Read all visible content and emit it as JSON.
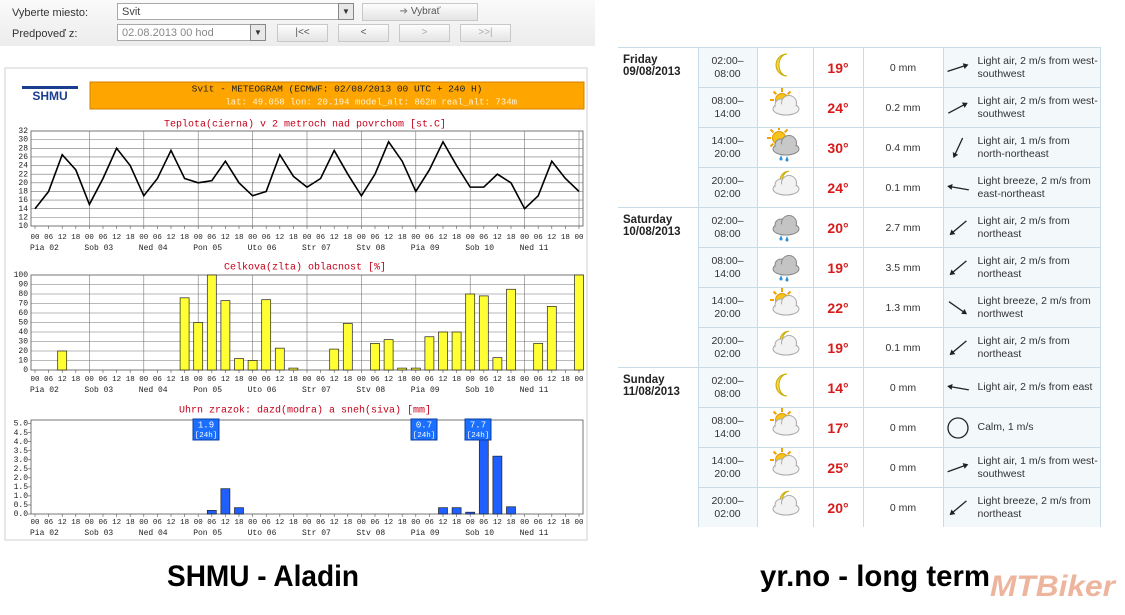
{
  "form": {
    "place_label": "Vyberte miesto:",
    "place": "Svit",
    "select_button": "Vybrať",
    "date_label": "Predpoveď z:",
    "date": "02.08.2013 00 hod",
    "nav": [
      "|<<",
      "<",
      ">",
      ">>|"
    ]
  },
  "meteogram": {
    "logo": "SHMU",
    "title": "Svit - METEOGRAM (ECMWF: 02/08/2013 00 UTC + 240 H)",
    "subtitle": "lat: 49.058  lon: 20.194  model_alt: 862m  real_alt: 734m",
    "hours": [
      "00",
      "06",
      "12",
      "18",
      "00",
      "06",
      "12",
      "18",
      "00",
      "06",
      "12",
      "18",
      "00",
      "06",
      "12",
      "18",
      "00",
      "06",
      "12",
      "18",
      "00",
      "06",
      "12",
      "18",
      "00",
      "06",
      "12",
      "18",
      "00",
      "06",
      "12",
      "18",
      "00",
      "06",
      "12",
      "18",
      "00",
      "06",
      "12",
      "18",
      "00"
    ],
    "days": [
      "Pia 02",
      "Sob 03",
      "Ned 04",
      "Pon 05",
      "Uto 06",
      "Str 07",
      "Stv 08",
      "Pia 09",
      "Sob 10",
      "Ned 11"
    ],
    "charts": [
      {
        "type": "line",
        "title": "Teplota(cierna) v 2 metroch nad povrchom [st.C]",
        "color": "#000000",
        "grid": true,
        "ylim": [
          10,
          32
        ],
        "yticks": [
          10,
          12,
          14,
          16,
          18,
          20,
          22,
          24,
          26,
          28,
          30,
          32
        ],
        "values": [
          14,
          18,
          26.5,
          23,
          15,
          21,
          28,
          24,
          17,
          21,
          27.5,
          21,
          20,
          20.5,
          25,
          20,
          17,
          18,
          26.5,
          21.5,
          19,
          21,
          27.5,
          22,
          17,
          22,
          29.5,
          25,
          18,
          23,
          29.5,
          24,
          19,
          19,
          22,
          20,
          14,
          17,
          25,
          21,
          18
        ]
      },
      {
        "type": "bar",
        "title": "Celkova(zlta) oblacnost [%]",
        "color": "#ffff33",
        "grid": true,
        "ylim": [
          0,
          100
        ],
        "yticks": [
          0,
          10,
          20,
          30,
          40,
          50,
          60,
          70,
          80,
          90,
          100
        ],
        "values": [
          0,
          0,
          20,
          0,
          0,
          0,
          0,
          0,
          0,
          0,
          0,
          76,
          50,
          100,
          73,
          12,
          10,
          74,
          23,
          2,
          0,
          0,
          22,
          49,
          0,
          28,
          32,
          2,
          2,
          35,
          40,
          40,
          80,
          78,
          13,
          85,
          0,
          28,
          67,
          0,
          100
        ]
      },
      {
        "type": "bar",
        "title": "Uhrn zrazok: dazd(modra) a sneh(siva) [mm]",
        "color": "#1f5fff",
        "grid": false,
        "ylim": [
          0,
          5.2
        ],
        "yticks": [
          {
            "value": 0,
            "label": "0.0"
          },
          {
            "value": 0.5,
            "label": "0.5"
          },
          {
            "value": 1,
            "label": "1.0"
          },
          {
            "value": 1.5,
            "label": "1.5"
          },
          {
            "value": 2,
            "label": "2.0"
          },
          {
            "value": 2.5,
            "label": "2.5"
          },
          {
            "value": 3,
            "label": "3.0"
          },
          {
            "value": 3.5,
            "label": "3.5"
          },
          {
            "value": 4,
            "label": "4.0"
          },
          {
            "value": 4.5,
            "label": "4.5"
          },
          {
            "value": 5,
            "label": "5.0"
          }
        ],
        "values": [
          0,
          0,
          0,
          0,
          0,
          0,
          0,
          0,
          0,
          0,
          0,
          0,
          0,
          0.2,
          1.4,
          0.35,
          0,
          0,
          0,
          0,
          0,
          0,
          0,
          0,
          0,
          0,
          0,
          0,
          0,
          0,
          0.35,
          0.35,
          0.1,
          4.3,
          3.2,
          0.4,
          0,
          0,
          0,
          0,
          0
        ],
        "annotations": [
          {
            "text": "1.9",
            "period": "[24h]"
          },
          {
            "text": "0.7",
            "period": "[24h]"
          },
          {
            "text": "7.7",
            "period": "[24h]"
          }
        ]
      }
    ]
  },
  "forecast": [
    {
      "day": "Friday",
      "date": "09/08/2013",
      "periods": [
        {
          "time": "02:00–08:00",
          "temperature": "19°",
          "precipitation": "0 mm",
          "wind": "Light air, 2 m/s from west-southwest"
        },
        {
          "time": "08:00–14:00",
          "temperature": "24°",
          "precipitation": "0.2 mm",
          "wind": "Light air, 2 m/s from west-southwest"
        },
        {
          "time": "14:00–20:00",
          "temperature": "30°",
          "precipitation": "0.4 mm",
          "wind": "Light air, 1 m/s from north-northeast"
        },
        {
          "time": "20:00–02:00",
          "temperature": "24°",
          "precipitation": "0.1 mm",
          "wind": "Light breeze, 2 m/s from east-northeast"
        }
      ]
    },
    {
      "day": "Saturday",
      "date": "10/08/2013",
      "periods": [
        {
          "time": "02:00–08:00",
          "temperature": "20°",
          "precipitation": "2.7 mm",
          "wind": "Light air, 2 m/s from northeast"
        },
        {
          "time": "08:00–14:00",
          "temperature": "19°",
          "precipitation": "3.5 mm",
          "wind": "Light air, 2 m/s from northeast"
        },
        {
          "time": "14:00–20:00",
          "temperature": "22°",
          "precipitation": "1.3 mm",
          "wind": "Light breeze, 2 m/s from northwest"
        },
        {
          "time": "20:00–02:00",
          "temperature": "19°",
          "precipitation": "0.1 mm",
          "wind": "Light air, 2 m/s from northeast"
        }
      ]
    },
    {
      "day": "Sunday",
      "date": "11/08/2013",
      "periods": [
        {
          "time": "02:00–08:00",
          "temperature": "14°",
          "precipitation": "0 mm",
          "wind": "Light air, 2 m/s from east"
        },
        {
          "time": "08:00–14:00",
          "temperature": "17°",
          "precipitation": "0 mm",
          "wind": "Calm, 1 m/s"
        },
        {
          "time": "14:00–20:00",
          "temperature": "25°",
          "precipitation": "0 mm",
          "wind": "Light air, 1 m/s from west-southwest"
        },
        {
          "time": "20:00–02:00",
          "temperature": "20°",
          "precipitation": "0 mm",
          "wind": "Light breeze, 2 m/s from northeast"
        }
      ]
    }
  ],
  "captions": {
    "left": "SHMU - Aladin",
    "right": "yr.no - long term",
    "watermark": "MTBiker"
  }
}
